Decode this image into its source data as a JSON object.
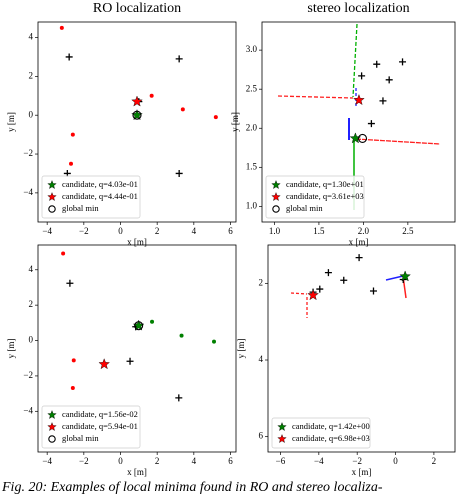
{
  "chart_data": [
    {
      "type": "scatter",
      "title": "RO localization",
      "xlabel": "x [m]",
      "ylabel": "y [m]",
      "xlim": [
        -4.5,
        6.3
      ],
      "ylim": [
        -5.5,
        4.8
      ],
      "xticks": [
        {
          "value": -4,
          "label": "−4"
        },
        {
          "value": -2,
          "label": "−2"
        },
        0,
        2,
        4,
        6
      ],
      "yticks": [
        {
          "value": -4,
          "label": "−4"
        },
        {
          "value": -2,
          "label": "−2"
        },
        0,
        2,
        4
      ],
      "legend": "lower left",
      "series": [
        {
          "color": "#000000",
          "marker": "plus",
          "x": [
            -2.8,
            3.2,
            3.2,
            -2.9,
            1.0
          ],
          "y": [
            3.0,
            2.9,
            -3.0,
            -3.0,
            0.7
          ]
        },
        {
          "color": "#ff0000",
          "marker": "point",
          "x": [
            -3.2,
            1.7,
            -2.6,
            -2.7,
            3.4,
            5.2
          ],
          "y": [
            4.5,
            1.0,
            -1.0,
            -2.5,
            0.3,
            -0.1
          ]
        },
        {
          "name": "candidate, q=4.03e-01",
          "color": "#008000",
          "marker": "star",
          "x": [
            0.9
          ],
          "y": [
            0.0
          ]
        },
        {
          "name": "candidate, q=4.44e-01",
          "color": "#ff0000",
          "marker": "star",
          "x": [
            0.9
          ],
          "y": [
            0.7
          ]
        },
        {
          "name": "global min",
          "color": "#000000",
          "marker": "circle",
          "x": [
            0.9
          ],
          "y": [
            0.0
          ]
        }
      ]
    },
    {
      "type": "scatter",
      "title": "stereo localization",
      "xlabel": "x [m]",
      "ylabel": "y [m]",
      "xlim": [
        0.86,
        3.03
      ],
      "ylim": [
        0.8,
        3.36
      ],
      "xticks": [
        {
          "value": 1.0,
          "label": "1.0"
        },
        {
          "value": 1.5,
          "label": "1.5"
        },
        {
          "value": 2.0,
          "label": "2.0"
        },
        {
          "value": 2.5,
          "label": "2.5"
        }
      ],
      "yticks": [
        {
          "value": 1.0,
          "label": "1.0"
        },
        {
          "value": 1.5,
          "label": "1.5"
        },
        {
          "value": 2.0,
          "label": "2.0"
        },
        {
          "value": 2.5,
          "label": "2.5"
        },
        {
          "value": 3.0,
          "label": "3.0"
        }
      ],
      "legend": "lower left",
      "series": [
        {
          "color": "#000000",
          "marker": "plus",
          "x": [
            1.98,
            2.15,
            2.29,
            2.44,
            2.22,
            2.09
          ],
          "y": [
            2.67,
            2.82,
            2.62,
            2.85,
            2.35,
            2.06
          ]
        },
        {
          "name": "candidate, q=1.30e+01",
          "color": "#008000",
          "marker": "star",
          "x": [
            1.91
          ],
          "y": [
            1.87
          ]
        },
        {
          "name": "candidate, q=3.61e+03",
          "color": "#ff0000",
          "marker": "star",
          "x": [
            1.95
          ],
          "y": [
            2.36
          ]
        },
        {
          "name": "global min",
          "color": "#000000",
          "marker": "circle",
          "x": [
            1.99
          ],
          "y": [
            1.87
          ]
        }
      ]
    },
    {
      "type": "scatter",
      "xlabel": "x [m]",
      "ylabel": "y [m]",
      "xlim": [
        -4.5,
        6.3
      ],
      "ylim": [
        -6.3,
        5.4
      ],
      "xticks": [
        {
          "value": -4,
          "label": "−4"
        },
        {
          "value": -2,
          "label": "−2"
        },
        0,
        2,
        4,
        6
      ],
      "yticks": [
        {
          "value": -4,
          "label": "−4"
        },
        {
          "value": -2,
          "label": "−2"
        },
        0,
        2,
        4
      ],
      "legend": "lower left",
      "series": [
        {
          "color": "#000000",
          "marker": "plus",
          "x": [
            -2.76,
            0.52,
            3.18,
            0.83
          ],
          "y": [
            3.24,
            -1.17,
            -3.24,
            0.78
          ]
        },
        {
          "color": "#ff0000",
          "marker": "point",
          "x": [
            -3.13,
            -2.55,
            -2.6
          ],
          "y": [
            4.92,
            -1.12,
            -2.68
          ]
        },
        {
          "color": "#008000",
          "marker": "point",
          "x": [
            1.72,
            3.33,
            5.1
          ],
          "y": [
            1.06,
            0.28,
            -0.06
          ]
        },
        {
          "name": "candidate, q=1.56e-02",
          "color": "#008000",
          "marker": "star",
          "x": [
            0.99
          ],
          "y": [
            0.84
          ]
        },
        {
          "name": "candidate, q=5.94e-01",
          "color": "#ff0000",
          "marker": "star",
          "x": [
            -0.89
          ],
          "y": [
            -1.34
          ]
        },
        {
          "name": "global min",
          "color": "#000000",
          "marker": "circle",
          "x": [
            0.99
          ],
          "y": [
            0.84
          ]
        }
      ]
    },
    {
      "type": "scatter",
      "xlabel": "x [m]",
      "ylabel": "y [m]",
      "xlim": [
        -6.65,
        3.1
      ],
      "ylim": [
        6.4,
        1.0
      ],
      "xticks": [
        {
          "value": -6,
          "label": "−6"
        },
        {
          "value": -4,
          "label": "−4"
        },
        {
          "value": -2,
          "label": "−2"
        },
        0,
        2
      ],
      "yticks": [
        2,
        4,
        6
      ],
      "legend": "lower left",
      "series": [
        {
          "color": "#000000",
          "marker": "plus",
          "x": [
            -4.3,
            -3.5,
            -2.7,
            -1.9,
            -1.15,
            -3.95,
            0.4
          ],
          "y": [
            2.23,
            1.72,
            1.92,
            1.33,
            2.2,
            2.15,
            1.9
          ]
        },
        {
          "name": "candidate, q=1.42e+00",
          "color": "#008000",
          "marker": "star",
          "x": [
            0.5
          ],
          "y": [
            1.82
          ]
        },
        {
          "name": "candidate, q=6.98e+03",
          "color": "#ff0000",
          "marker": "star",
          "x": [
            -4.3
          ],
          "y": [
            2.31
          ]
        }
      ]
    }
  ],
  "caption": "Fig. 20: Examples of local minima found in RO and stereo localiza-"
}
